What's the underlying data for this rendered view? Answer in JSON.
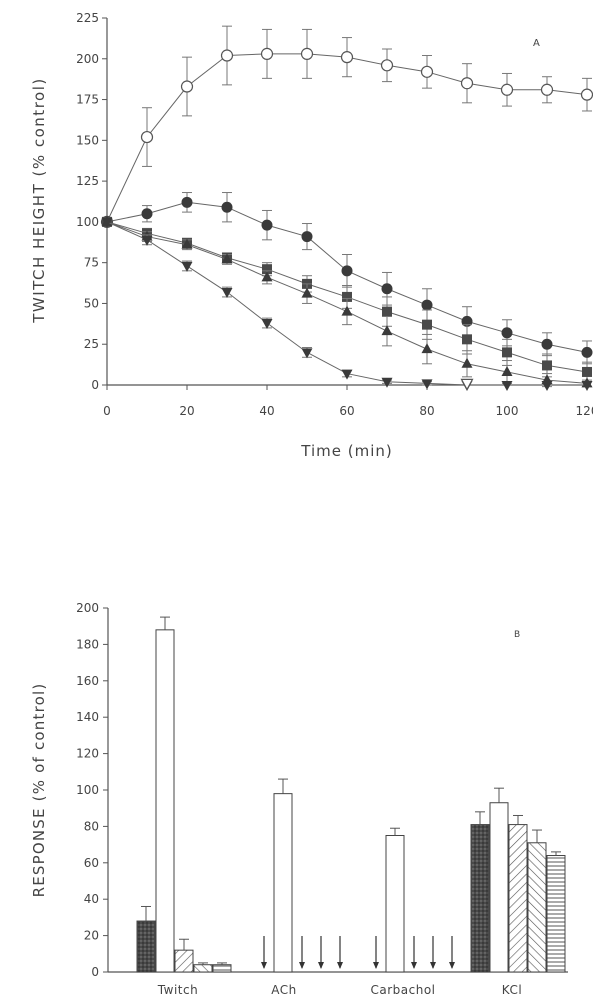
{
  "chart_data": [
    {
      "panel": "A",
      "type": "line",
      "xlabel": "Time (min)",
      "ylabel": "TWITCH HEIGHT (% control)",
      "xlim": [
        0,
        120
      ],
      "ylim": [
        0,
        225
      ],
      "xticks": [
        0,
        20,
        40,
        60,
        80,
        100,
        120
      ],
      "xtick_labels": [
        "0",
        "20",
        "40",
        "60",
        "80",
        "100",
        "120"
      ],
      "yticks": [
        0,
        25,
        50,
        75,
        100,
        125,
        150,
        175,
        200,
        225
      ],
      "ytick_labels": [
        "0",
        "25",
        "50",
        "75",
        "100",
        "125",
        "150",
        "175",
        "200",
        "225"
      ],
      "x": [
        0,
        10,
        20,
        30,
        40,
        50,
        60,
        70,
        80,
        90,
        100,
        110,
        120
      ],
      "series": [
        {
          "marker": "open-circle",
          "values": [
            100,
            152,
            183,
            202,
            203,
            203,
            201,
            196,
            192,
            185,
            181,
            181,
            178
          ],
          "errors": [
            0,
            18,
            18,
            18,
            15,
            15,
            12,
            10,
            10,
            12,
            10,
            8,
            10
          ]
        },
        {
          "marker": "filled-circle",
          "values": [
            100,
            105,
            112,
            109,
            98,
            91,
            70,
            59,
            49,
            39,
            32,
            25,
            20
          ],
          "errors": [
            0,
            5,
            6,
            9,
            9,
            8,
            10,
            10,
            10,
            9,
            8,
            7,
            7
          ]
        },
        {
          "marker": "filled-square",
          "values": [
            100,
            93,
            87,
            78,
            71,
            62,
            54,
            45,
            37,
            28,
            20,
            12,
            8
          ],
          "errors": [
            0,
            3,
            3,
            3,
            4,
            5,
            7,
            9,
            9,
            9,
            8,
            7,
            6
          ]
        },
        {
          "marker": "filled-triangle-up",
          "values": [
            100,
            91,
            86,
            77,
            66,
            56,
            45,
            33,
            22,
            13,
            8,
            3,
            1
          ],
          "errors": [
            0,
            3,
            3,
            3,
            4,
            6,
            8,
            9,
            9,
            8,
            7,
            4,
            2
          ]
        },
        {
          "marker": "filled-triangle-down",
          "values": [
            100,
            89,
            73,
            57,
            38,
            20,
            7,
            2,
            1,
            0,
            0,
            0,
            0
          ],
          "errors": [
            0,
            3,
            3,
            3,
            3,
            3,
            2,
            1,
            1,
            0,
            0,
            0,
            0
          ]
        },
        {
          "marker": "open-triangle-down",
          "values": [
            null,
            null,
            null,
            null,
            null,
            null,
            null,
            null,
            null,
            1,
            null,
            null,
            null
          ],
          "errors": [
            0,
            0,
            0,
            0,
            0,
            0,
            0,
            0,
            0,
            0,
            0,
            0,
            0
          ]
        }
      ],
      "panel_letter": "A"
    },
    {
      "panel": "B",
      "type": "bar",
      "ylabel": "RESPONSE (% of control)",
      "ylim": [
        0,
        200
      ],
      "yticks": [
        0,
        20,
        40,
        60,
        80,
        100,
        120,
        140,
        160,
        180,
        200
      ],
      "ytick_labels": [
        "0",
        "20",
        "40",
        "60",
        "80",
        "100",
        "120",
        "140",
        "160",
        "180",
        "200"
      ],
      "categories": [
        "Twitch",
        "ACh",
        "Carbachol",
        "KCl"
      ],
      "category_labels": [
        "Twitch",
        "ACh",
        "Carbachol",
        "KCl"
      ],
      "bar_fills": [
        "dark-stipple",
        "white",
        "diagonal-right",
        "diagonal-left",
        "horizontal"
      ],
      "series": [
        {
          "fill": "dark-stipple",
          "values": [
            28,
            0,
            0,
            81
          ],
          "errors": [
            8,
            0,
            0,
            7
          ]
        },
        {
          "fill": "white",
          "values": [
            188,
            98,
            75,
            93
          ],
          "errors": [
            7,
            8,
            4,
            8
          ]
        },
        {
          "fill": "diagonal-right",
          "values": [
            12,
            0,
            0,
            81
          ],
          "errors": [
            6,
            0,
            0,
            5
          ]
        },
        {
          "fill": "diagonal-left",
          "values": [
            4,
            0,
            0,
            71
          ],
          "errors": [
            1,
            0,
            0,
            7
          ]
        },
        {
          "fill": "horizontal",
          "values": [
            4,
            0,
            0,
            64
          ],
          "errors": [
            1,
            0,
            0,
            2
          ]
        }
      ],
      "arrows_mark_zero_response": true,
      "panel_letter": "B"
    }
  ]
}
